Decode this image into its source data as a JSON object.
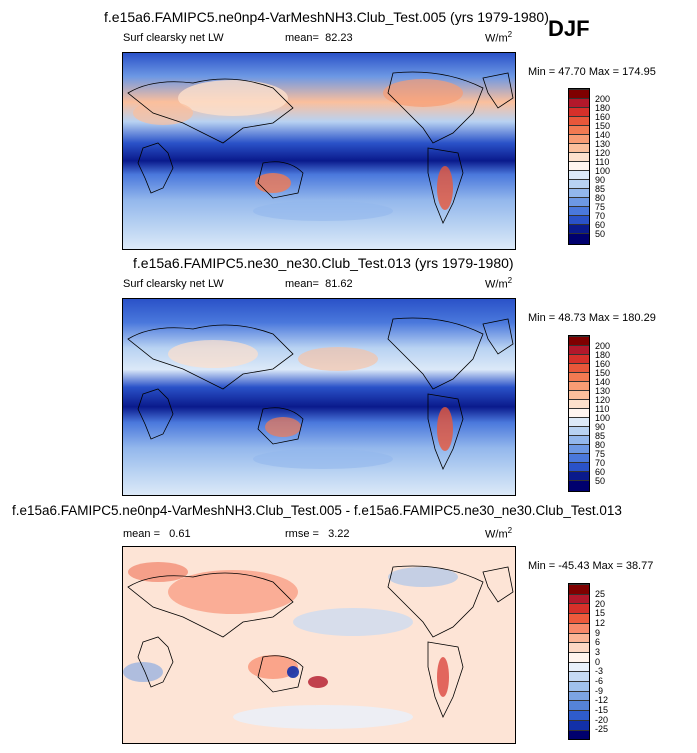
{
  "season": "DJF",
  "panels": [
    {
      "id": "p1",
      "title": "f.e15a6.FAMIPC5.ne0np4-VarMeshNH3.Club_Test.005 (yrs 1979-1980)",
      "left_label": "Surf clearsky net LW",
      "mean_label": "mean=",
      "mean_value": "82.23",
      "units": "W/m",
      "units_sup": "2",
      "minmax": "Min = 47.70 Max = 174.95",
      "levels": [
        "200",
        "180",
        "160",
        "150",
        "140",
        "130",
        "120",
        "110",
        "100",
        "90",
        "85",
        "80",
        "75",
        "70",
        "60",
        "50"
      ]
    },
    {
      "id": "p2",
      "title": "f.e15a6.FAMIPC5.ne30_ne30.Club_Test.013 (yrs 1979-1980)",
      "left_label": "Surf clearsky net LW",
      "mean_label": "mean=",
      "mean_value": "81.62",
      "units": "W/m",
      "units_sup": "2",
      "minmax": "Min = 48.73 Max = 180.29",
      "levels": [
        "200",
        "180",
        "160",
        "150",
        "140",
        "130",
        "120",
        "110",
        "100",
        "90",
        "85",
        "80",
        "75",
        "70",
        "60",
        "50"
      ]
    },
    {
      "id": "p3",
      "title": "f.e15a6.FAMIPC5.ne0np4-VarMeshNH3.Club_Test.005 - f.e15a6.FAMIPC5.ne30_ne30.Club_Test.013",
      "left_label": "mean =",
      "left_value": "0.61",
      "mean_label": "rmse =",
      "mean_value": "3.22",
      "units": "W/m",
      "units_sup": "2",
      "minmax": "Min = -45.43 Max = 38.77",
      "levels": [
        "25",
        "20",
        "15",
        "12",
        "9",
        "6",
        "3",
        "0",
        "-3",
        "-6",
        "-9",
        "-12",
        "-15",
        "-20",
        "-25"
      ]
    }
  ],
  "colors": {
    "abs_scale": [
      "#7f0000",
      "#b2182b",
      "#d6302a",
      "#e8573a",
      "#f27a52",
      "#f89c74",
      "#fbbf9c",
      "#fde0cc",
      "#fff5f0",
      "#dce9f8",
      "#b8d2f2",
      "#93b7ec",
      "#6d98e4",
      "#4a78dc",
      "#2a52c8",
      "#0a1a8c",
      "#00006e"
    ],
    "diff_scale": [
      "#7f0000",
      "#b2182b",
      "#d6302a",
      "#ee5a3c",
      "#f8896a",
      "#fbb495",
      "#fcd7c3",
      "#fff4ee",
      "#e8f0fb",
      "#c6daf4",
      "#a0c1ec",
      "#7ca4e2",
      "#5583d8",
      "#2f5ccc",
      "#1230a8",
      "#00006e"
    ]
  }
}
